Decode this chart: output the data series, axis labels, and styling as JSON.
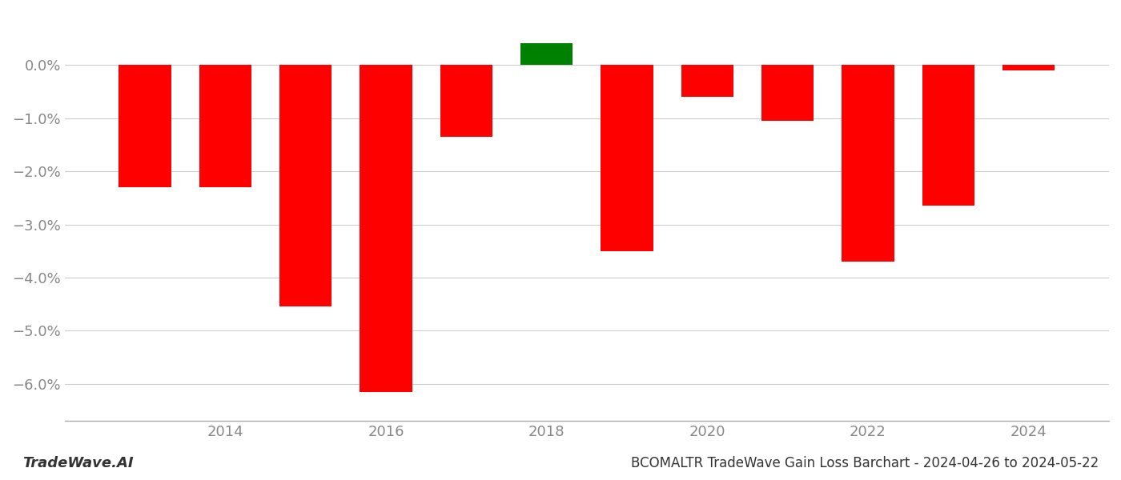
{
  "years": [
    2013,
    2014,
    2015,
    2016,
    2017,
    2018,
    2019,
    2020,
    2021,
    2022,
    2023,
    2024
  ],
  "values": [
    -0.023,
    -0.023,
    -0.0455,
    -0.0615,
    -0.0135,
    0.0042,
    -0.035,
    -0.006,
    -0.0105,
    -0.037,
    -0.0265,
    -0.001
  ],
  "colors": [
    "red",
    "red",
    "red",
    "red",
    "red",
    "green",
    "red",
    "red",
    "red",
    "red",
    "red",
    "red"
  ],
  "title": "BCOMALTR TradeWave Gain Loss Barchart - 2024-04-26 to 2024-05-22",
  "watermark": "TradeWave.AI",
  "ylim_min": -0.067,
  "ylim_max": 0.01,
  "yticks": [
    0.0,
    -0.01,
    -0.02,
    -0.03,
    -0.04,
    -0.05,
    -0.06
  ],
  "ytick_labels": [
    "0.0%",
    "−1.0%",
    "−2.0%",
    "−3.0%",
    "−4.0%",
    "−5.0%",
    "−6.0%"
  ],
  "xticks": [
    2014,
    2016,
    2018,
    2020,
    2022,
    2024
  ],
  "bar_width": 0.65,
  "background_color": "#ffffff",
  "grid_color": "#cccccc",
  "axis_color": "#aaaaaa",
  "title_fontsize": 12,
  "watermark_fontsize": 13,
  "tick_fontsize": 13,
  "tick_color": "#888888"
}
